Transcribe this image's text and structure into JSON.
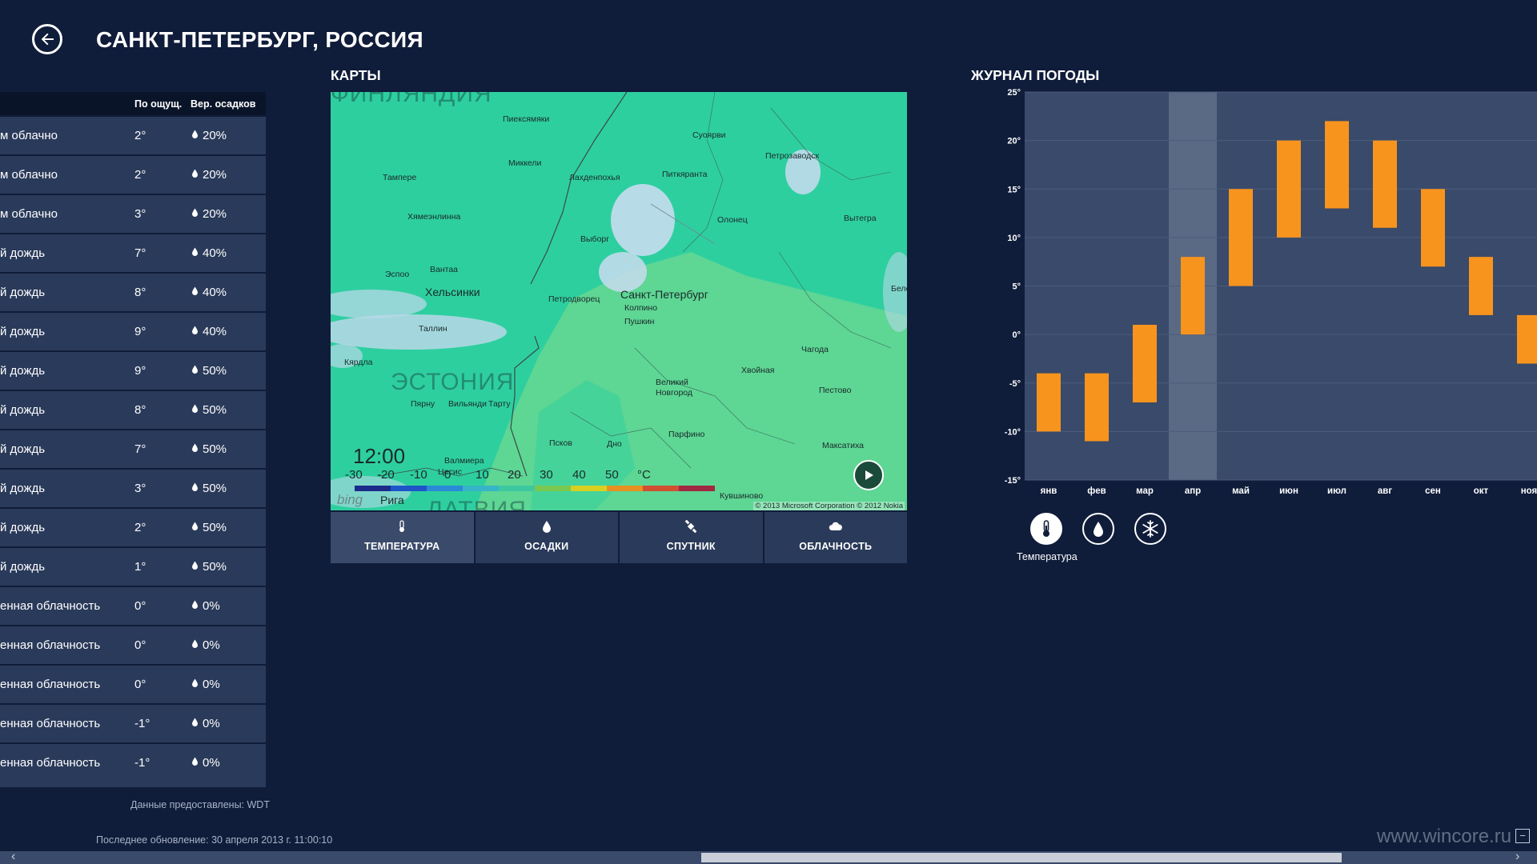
{
  "header": {
    "title": "САНКТ-ПЕТЕРБУРГ, РОССИЯ"
  },
  "forecast": {
    "col_feels": "По ощущ.",
    "col_precip": "Вер. осадков",
    "rows": [
      {
        "cond": "м облачно",
        "feels": "2°",
        "precip": "20%"
      },
      {
        "cond": "м облачно",
        "feels": "2°",
        "precip": "20%"
      },
      {
        "cond": "м облачно",
        "feels": "3°",
        "precip": "20%"
      },
      {
        "cond": "й дождь",
        "feels": "7°",
        "precip": "40%"
      },
      {
        "cond": "й дождь",
        "feels": "8°",
        "precip": "40%"
      },
      {
        "cond": "й дождь",
        "feels": "9°",
        "precip": "40%"
      },
      {
        "cond": "й дождь",
        "feels": "9°",
        "precip": "50%"
      },
      {
        "cond": "й дождь",
        "feels": "8°",
        "precip": "50%"
      },
      {
        "cond": "й дождь",
        "feels": "7°",
        "precip": "50%"
      },
      {
        "cond": "й дождь",
        "feels": "3°",
        "precip": "50%"
      },
      {
        "cond": "й дождь",
        "feels": "2°",
        "precip": "50%"
      },
      {
        "cond": "й дождь",
        "feels": "1°",
        "precip": "50%"
      },
      {
        "cond": "енная облачность",
        "feels": "0°",
        "precip": "0%"
      },
      {
        "cond": "енная облачность",
        "feels": "0°",
        "precip": "0%"
      },
      {
        "cond": "енная облачность",
        "feels": "0°",
        "precip": "0%"
      },
      {
        "cond": "енная облачность",
        "feels": "-1°",
        "precip": "0%"
      },
      {
        "cond": "енная облачность",
        "feels": "-1°",
        "precip": "0%"
      }
    ],
    "data_source": "Данные предоставлены: WDT",
    "last_update": "Последнее обновление: 30 апреля 2013 г. 11:00:10"
  },
  "maps": {
    "title": "КАРТЫ",
    "time": "12:00",
    "legend_ticks": [
      "-30",
      "-20",
      "-10",
      "0",
      "10",
      "20",
      "30",
      "40",
      "50",
      "°C"
    ],
    "legend_colors": [
      "#1c2a8a",
      "#1e55c8",
      "#2a8ad8",
      "#36b4c8",
      "#3ec8a0",
      "#7ac850",
      "#d8d020",
      "#e89020",
      "#d05030",
      "#a02840"
    ],
    "bing": "bing",
    "copyright": "© 2013 Microsoft Corporation © 2012 Nokia",
    "countries": [
      "ФИНЛЯНДИЯ",
      "ЭСТОНИЯ",
      "ЛАТВИЯ"
    ],
    "cities": {
      "piexamaki": "Пиексямяки",
      "suojarvi": "Суоярви",
      "petrozavodsk": "Петрозаводск",
      "tampere": "Тампере",
      "mikkeli": "Миккели",
      "lahdenpohja": "Лахденпохья",
      "pitkyaranta": "Питкяранта",
      "hameenlinna": "Хямеэнлинна",
      "olonets": "Олонец",
      "vytegra": "Вытегра",
      "vyborg": "Выборг",
      "vantaa": "Вантаа",
      "espoo": "Эспоо",
      "helsinki": "Хельсинки",
      "petrodvorets": "Петродворец",
      "spb": "Санкт-Петербург",
      "kolpino": "Колпино",
      "pushkin": "Пушкин",
      "tallinn": "Таллин",
      "chagoda": "Чагода",
      "kardla": "Кярдла",
      "khvoynaya": "Хвойная",
      "novgorod1": "Великий",
      "novgorod2": "Новгород",
      "pestovo": "Пестово",
      "parnu": "Пярну",
      "viljandi": "Вильянди",
      "tartu": "Тарту",
      "parfino": "Парфино",
      "pskov": "Псков",
      "dno": "Дно",
      "maksatikha": "Максатиха",
      "valmiera": "Валмиера",
      "cesis": "Цесис",
      "riga": "Рига",
      "kuvshinovo": "Кувшиново",
      "bel": "Бело"
    },
    "tabs": [
      {
        "label": "ТЕМПЕРАТУРА",
        "icon": "thermometer-icon"
      },
      {
        "label": "ОСАДКИ",
        "icon": "raindrop-icon"
      },
      {
        "label": "СПУТНИК",
        "icon": "satellite-icon"
      },
      {
        "label": "ОБЛАЧНОСТЬ",
        "icon": "cloud-icon"
      }
    ]
  },
  "weather_log": {
    "title": "ЖУРНАЛ ПОГОДЫ",
    "mode_label": "Температура",
    "modes": [
      "thermometer-icon",
      "raindrop-icon",
      "snowflake-icon"
    ]
  },
  "chart_data": {
    "type": "bar",
    "subtype": "floating-range",
    "categories": [
      "янв",
      "фев",
      "мар",
      "апр",
      "май",
      "июн",
      "июл",
      "авг",
      "сен",
      "окт",
      "ноя"
    ],
    "series": [
      {
        "low": [
          -10,
          -11,
          -7,
          0,
          5,
          10,
          13,
          11,
          7,
          2,
          -3
        ],
        "high": [
          -4,
          -4,
          1,
          8,
          15,
          20,
          22,
          20,
          15,
          8,
          2
        ]
      }
    ],
    "highlight_category": "апр",
    "ylim": [
      -15,
      25
    ],
    "yticks": [
      "25°",
      "20°",
      "15°",
      "10°",
      "5°",
      "0°",
      "-5°",
      "-10°",
      "-15°"
    ],
    "bar_color": "#f7941d",
    "grid": true
  },
  "colors": {
    "background": "#0f1c3a",
    "panel": "#2a3a5a",
    "accent": "#f7941d"
  },
  "watermark": "www.wincore.ru"
}
